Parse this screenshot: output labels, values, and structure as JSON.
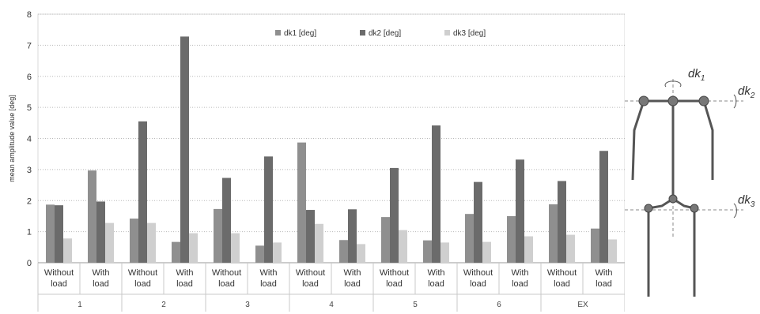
{
  "chart_data": {
    "type": "bar",
    "ylabel": "mean amplitude value [deg]",
    "ylim": [
      0,
      8
    ],
    "yticks": [
      0,
      1,
      2,
      3,
      4,
      5,
      6,
      7,
      8
    ],
    "grid": true,
    "legend_placement": "top-center",
    "groups": [
      "1",
      "2",
      "3",
      "4",
      "5",
      "6",
      "EX"
    ],
    "conditions": [
      "Without load",
      "With load"
    ],
    "categories": [
      "1 Without load",
      "1 With load",
      "2 Without load",
      "2 With load",
      "3 Without load",
      "3 With load",
      "4 Without load",
      "4 With load",
      "5 Without load",
      "5 With load",
      "6 Without load",
      "6 With load",
      "EX Without load",
      "EX With load"
    ],
    "series": [
      {
        "name": "dk1 [deg]",
        "color": "#8f8f8f",
        "values": [
          1.87,
          2.97,
          1.42,
          0.67,
          1.73,
          0.55,
          3.87,
          0.73,
          1.47,
          0.72,
          1.57,
          1.5,
          1.88,
          1.1
        ]
      },
      {
        "name": "dk2 [deg]",
        "color": "#6b6b6b",
        "values": [
          1.85,
          1.97,
          4.55,
          7.28,
          2.73,
          3.42,
          1.7,
          1.72,
          3.05,
          4.42,
          2.6,
          3.32,
          2.63,
          3.6
        ]
      },
      {
        "name": "dk3 [deg]",
        "color": "#cfcfcf",
        "values": [
          0.78,
          1.28,
          1.28,
          0.95,
          0.95,
          0.65,
          1.25,
          0.6,
          1.05,
          0.65,
          0.67,
          0.85,
          0.9,
          0.75
        ]
      }
    ]
  },
  "diagram": {
    "labels": {
      "dk1": "dk",
      "dk1_sub": "1",
      "dk2": "dk",
      "dk2_sub": "2",
      "dk3": "dk",
      "dk3_sub": "3"
    },
    "colors": {
      "limb": "#555555",
      "joint": "#777777",
      "dash": "#888888"
    }
  }
}
